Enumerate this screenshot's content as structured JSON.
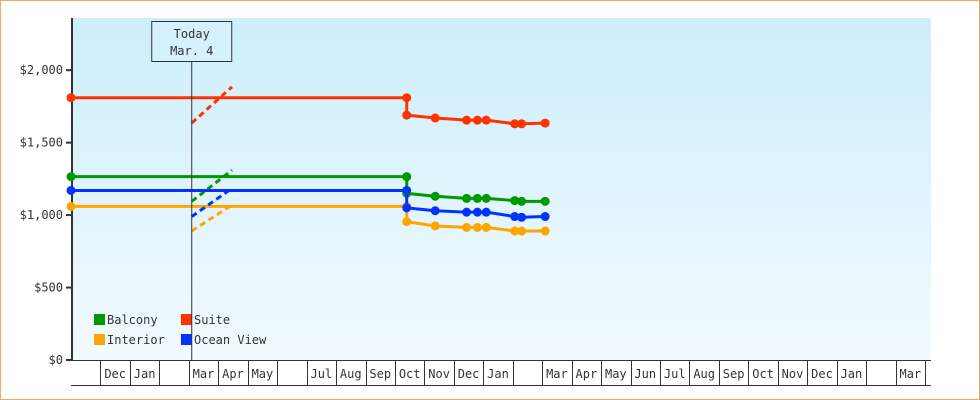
{
  "chart_data": {
    "type": "line",
    "title": "",
    "xlabel": "",
    "ylabel": "",
    "ylim": [
      0,
      2360
    ],
    "yticks": [
      {
        "value": 0,
        "label": "$0"
      },
      {
        "value": 500,
        "label": "$500"
      },
      {
        "value": 1000,
        "label": "$1,000"
      },
      {
        "value": 1500,
        "label": "$1,500"
      },
      {
        "value": 2000,
        "label": "$2,000"
      }
    ],
    "month_cells": [
      "",
      "Dec",
      "Jan",
      "",
      "Mar",
      "Apr",
      "May",
      "",
      "Jul",
      "Aug",
      "Sep",
      "Oct",
      "Nov",
      "Dec",
      "Jan",
      "",
      "Mar",
      "Apr",
      "May",
      "Jun",
      "Jul",
      "Aug",
      "Sep",
      "Oct",
      "Nov",
      "Dec",
      "Jan",
      "",
      "Mar",
      ""
    ],
    "today": {
      "title": "Today",
      "date_label": "Mar. 4",
      "date": "Mar 4"
    },
    "grid": false,
    "legend": "bottom-left",
    "series": [
      {
        "name": "Balcony",
        "color": "#009900",
        "points": [
          [
            "Nov 1",
            1265
          ],
          [
            "Oct 13",
            1265
          ],
          [
            "Oct 13",
            1150
          ],
          [
            "Nov 12",
            1130
          ],
          [
            "Dec 14",
            1115
          ],
          [
            "Dec 25",
            1115
          ],
          [
            "Jan 4",
            1115
          ],
          [
            "Feb 3",
            1100
          ],
          [
            "Feb 10",
            1095
          ],
          [
            "Mar 4",
            1095
          ]
        ],
        "forecast": [
          [
            "Mar 4",
            1095
          ],
          [
            "Apr 15",
            1310
          ]
        ]
      },
      {
        "name": "Suite",
        "color": "#ff3300",
        "points": [
          [
            "Nov 1",
            1810
          ],
          [
            "Oct 13",
            1810
          ],
          [
            "Oct 13",
            1690
          ],
          [
            "Nov 12",
            1670
          ],
          [
            "Dec 14",
            1655
          ],
          [
            "Dec 25",
            1655
          ],
          [
            "Jan 4",
            1655
          ],
          [
            "Feb 3",
            1630
          ],
          [
            "Feb 10",
            1630
          ],
          [
            "Mar 4",
            1635
          ]
        ],
        "forecast": [
          [
            "Mar 4",
            1635
          ],
          [
            "Apr 15",
            1885
          ]
        ]
      },
      {
        "name": "Interior",
        "color": "#ffa500",
        "points": [
          [
            "Nov 1",
            1060
          ],
          [
            "Oct 13",
            1060
          ],
          [
            "Oct 13",
            955
          ],
          [
            "Nov 12",
            925
          ],
          [
            "Dec 14",
            915
          ],
          [
            "Dec 25",
            915
          ],
          [
            "Jan 4",
            915
          ],
          [
            "Feb 3",
            890
          ],
          [
            "Feb 10",
            890
          ],
          [
            "Mar 4",
            890
          ]
        ],
        "forecast": [
          [
            "Mar 4",
            890
          ],
          [
            "Apr 15",
            1070
          ]
        ]
      },
      {
        "name": "Ocean View",
        "color": "#0033ff",
        "points": [
          [
            "Nov 1",
            1170
          ],
          [
            "Oct 13",
            1170
          ],
          [
            "Oct 13",
            1050
          ],
          [
            "Nov 12",
            1030
          ],
          [
            "Dec 14",
            1020
          ],
          [
            "Dec 25",
            1020
          ],
          [
            "Jan 4",
            1020
          ],
          [
            "Feb 3",
            990
          ],
          [
            "Feb 10",
            985
          ],
          [
            "Mar 4",
            990
          ]
        ],
        "forecast": [
          [
            "Mar 4",
            990
          ],
          [
            "Apr 15",
            1185
          ]
        ]
      }
    ]
  }
}
